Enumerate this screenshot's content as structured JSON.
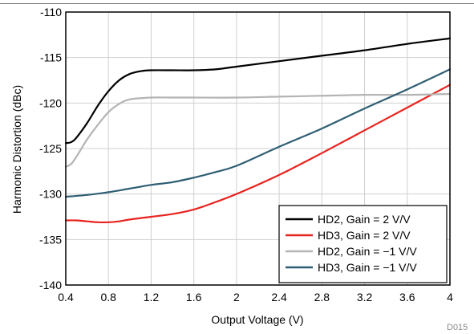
{
  "figure_id": "D015",
  "chart_data": {
    "type": "line",
    "title": "",
    "xlabel": "Output Voltage (V)",
    "ylabel": "Harmonic Distortion (dBc)",
    "xlim": [
      0.4,
      4
    ],
    "ylim": [
      -140,
      -110
    ],
    "xticks": [
      "0.4",
      "0.8",
      "1.2",
      "1.6",
      "2",
      "2.4",
      "2.8",
      "3.2",
      "3.6",
      "4"
    ],
    "yticks": [
      "-110",
      "-115",
      "-120",
      "-125",
      "-130",
      "-135",
      "-140"
    ],
    "grid": true,
    "legend_position": "bottom-right",
    "series": [
      {
        "name": "HD2, Gain = 2 V/V",
        "color": "#000000",
        "x": [
          0.4,
          0.45,
          0.5,
          0.6,
          0.7,
          0.8,
          0.9,
          1.0,
          1.1,
          1.2,
          1.4,
          1.6,
          1.8,
          2.0,
          2.4,
          2.8,
          3.2,
          3.6,
          4.0
        ],
        "y": [
          -124.4,
          -124.3,
          -123.8,
          -122.2,
          -120.3,
          -118.7,
          -117.5,
          -116.8,
          -116.5,
          -116.4,
          -116.4,
          -116.4,
          -116.3,
          -116.0,
          -115.4,
          -114.8,
          -114.2,
          -113.5,
          -112.9
        ]
      },
      {
        "name": "HD3, Gain = 2 V/V",
        "color": "#e8231f",
        "x": [
          0.4,
          0.5,
          0.6,
          0.7,
          0.8,
          0.9,
          1.0,
          1.2,
          1.4,
          1.6,
          1.8,
          2.0,
          2.4,
          2.8,
          3.2,
          3.6,
          4.0
        ],
        "y": [
          -132.9,
          -132.9,
          -133.0,
          -133.1,
          -133.1,
          -133.0,
          -132.8,
          -132.5,
          -132.2,
          -131.7,
          -130.9,
          -130.0,
          -127.9,
          -125.5,
          -123.0,
          -120.5,
          -118.0
        ]
      },
      {
        "name": "HD2, Gain = −1 V/V",
        "color": "#b4b4b4",
        "x": [
          0.4,
          0.45,
          0.5,
          0.6,
          0.7,
          0.8,
          0.9,
          1.0,
          1.2,
          1.4,
          1.6,
          2.0,
          2.4,
          2.8,
          3.2,
          3.6,
          4.0
        ],
        "y": [
          -127.0,
          -126.7,
          -125.9,
          -124.0,
          -122.4,
          -121.0,
          -120.1,
          -119.6,
          -119.4,
          -119.4,
          -119.4,
          -119.4,
          -119.3,
          -119.2,
          -119.1,
          -119.1,
          -119.0
        ]
      },
      {
        "name": "HD3, Gain = −1 V/V",
        "color": "#2f5e74",
        "x": [
          0.4,
          0.6,
          0.8,
          1.0,
          1.2,
          1.4,
          1.6,
          1.8,
          2.0,
          2.4,
          2.8,
          3.2,
          3.6,
          4.0
        ],
        "y": [
          -130.3,
          -130.1,
          -129.8,
          -129.4,
          -129.0,
          -128.7,
          -128.2,
          -127.6,
          -126.9,
          -124.8,
          -122.8,
          -120.6,
          -118.5,
          -116.3
        ]
      }
    ]
  }
}
